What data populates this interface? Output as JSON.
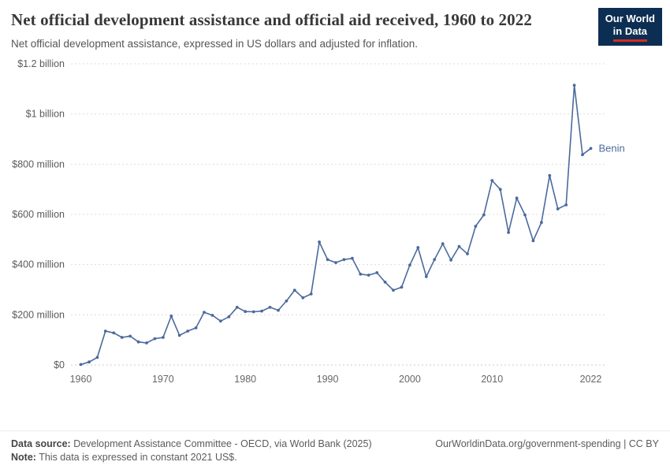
{
  "header": {
    "title": "Net official development assistance and official aid received, 1960 to 2022",
    "subtitle": "Net official development assistance, expressed in US dollars and adjusted for inflation.",
    "logo": {
      "line1": "Our World",
      "line2": "in Data"
    }
  },
  "chart_data": {
    "type": "line",
    "title": "Net official development assistance and official aid received, 1960 to 2022",
    "unit": "constant 2021 US$ (millions)",
    "xlabel": "",
    "ylabel": "",
    "ylim": [
      0,
      1200
    ],
    "grid": true,
    "legend_position": "end-of-line",
    "x": [
      1960,
      1961,
      1962,
      1963,
      1964,
      1965,
      1966,
      1967,
      1968,
      1969,
      1970,
      1971,
      1972,
      1973,
      1974,
      1975,
      1976,
      1977,
      1978,
      1979,
      1980,
      1981,
      1982,
      1983,
      1984,
      1985,
      1986,
      1987,
      1988,
      1989,
      1990,
      1991,
      1992,
      1993,
      1994,
      1995,
      1996,
      1997,
      1998,
      1999,
      2000,
      2001,
      2002,
      2003,
      2004,
      2005,
      2006,
      2007,
      2008,
      2009,
      2010,
      2011,
      2012,
      2013,
      2014,
      2015,
      2016,
      2017,
      2018,
      2019,
      2020,
      2021,
      2022
    ],
    "series": [
      {
        "name": "Benin",
        "color": "#4c6a9c",
        "values": [
          2,
          12,
          30,
          135,
          128,
          110,
          115,
          92,
          88,
          105,
          110,
          195,
          118,
          135,
          148,
          210,
          198,
          175,
          192,
          230,
          213,
          212,
          215,
          230,
          218,
          255,
          298,
          268,
          283,
          490,
          420,
          408,
          420,
          425,
          362,
          358,
          368,
          330,
          298,
          310,
          398,
          468,
          352,
          420,
          483,
          418,
          472,
          443,
          553,
          598,
          735,
          700,
          528,
          665,
          598,
          495,
          568,
          755,
          622,
          638,
          1115,
          838,
          863
        ]
      }
    ],
    "yticks": [
      {
        "value": 0,
        "label": "$0"
      },
      {
        "value": 200,
        "label": "$200 million"
      },
      {
        "value": 400,
        "label": "$400 million"
      },
      {
        "value": 600,
        "label": "$600 million"
      },
      {
        "value": 800,
        "label": "$800 million"
      },
      {
        "value": 1000,
        "label": "$1 billion"
      },
      {
        "value": 1200,
        "label": "$1.2 billion"
      }
    ],
    "xticks": [
      1960,
      1970,
      1980,
      1990,
      2000,
      2010,
      2022
    ]
  },
  "footer": {
    "source_label": "Data source:",
    "source": "Development Assistance Committee - OECD, via World Bank (2025)",
    "note_label": "Note:",
    "note": "This data is expressed in constant 2021 US$.",
    "url": "OurWorldinData.org/government-spending | CC BY"
  }
}
